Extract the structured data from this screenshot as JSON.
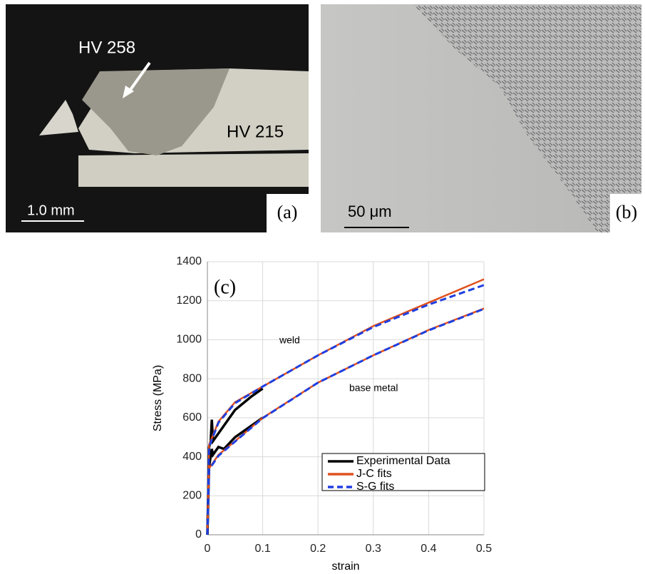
{
  "panels": [
    {
      "label": "(a)",
      "texts": [
        "HV 258",
        "HV 215"
      ],
      "scale_bar": "1.0 mm"
    },
    {
      "label": "(b)",
      "scale_bar": "50 μm"
    }
  ],
  "chart_data": {
    "type": "line",
    "xlabel": "strain",
    "ylabel": "Stress (MPa)",
    "annotations": [
      "(c)",
      "weld",
      "base metal"
    ],
    "xlim": [
      0,
      0.5
    ],
    "xticks": [
      0,
      0.1,
      0.2,
      0.3,
      0.4,
      0.5
    ],
    "ylim": [
      0,
      1400
    ],
    "yticks": [
      0,
      200,
      400,
      600,
      800,
      1000,
      1200,
      1400
    ],
    "grid": true,
    "legend": "lower right",
    "series": [
      {
        "name": "Experimental Data",
        "color": "#000000",
        "dashed": false,
        "curves": [
          {
            "x": [
              0,
              0.003,
              0.006,
              0.008,
              0.01,
              0.02,
              0.05,
              0.08,
              0.1
            ],
            "values": [
              0,
              450,
              480,
              590,
              480,
              520,
              640,
              710,
              750
            ]
          },
          {
            "x": [
              0,
              0.003,
              0.008,
              0.01,
              0.02,
              0.03,
              0.05,
              0.1
            ],
            "values": [
              0,
              350,
              440,
              410,
              450,
              440,
              500,
              600
            ]
          }
        ]
      },
      {
        "name": "J-C fits",
        "color": "#e0501e",
        "dashed": false,
        "curves": [
          {
            "x": [
              0,
              0.003,
              0.02,
              0.05,
              0.1,
              0.2,
              0.3,
              0.4,
              0.5
            ],
            "values": [
              0,
              460,
              580,
              680,
              760,
              920,
              1070,
              1190,
              1310
            ]
          },
          {
            "x": [
              0,
              0.003,
              0.02,
              0.05,
              0.1,
              0.2,
              0.3,
              0.4,
              0.5
            ],
            "values": [
              0,
              340,
              410,
              480,
              600,
              780,
              920,
              1050,
              1160
            ]
          }
        ]
      },
      {
        "name": "S-G fits",
        "color": "#1f3fe0",
        "dashed": true,
        "curves": [
          {
            "x": [
              0,
              0.003,
              0.02,
              0.05,
              0.1,
              0.2,
              0.3,
              0.4,
              0.5
            ],
            "values": [
              0,
              450,
              575,
              675,
              760,
              920,
              1065,
              1180,
              1280
            ]
          },
          {
            "x": [
              0,
              0.003,
              0.02,
              0.05,
              0.1,
              0.2,
              0.3,
              0.4,
              0.5
            ],
            "values": [
              0,
              335,
              405,
              478,
              598,
              780,
              920,
              1048,
              1158
            ]
          }
        ]
      }
    ]
  }
}
